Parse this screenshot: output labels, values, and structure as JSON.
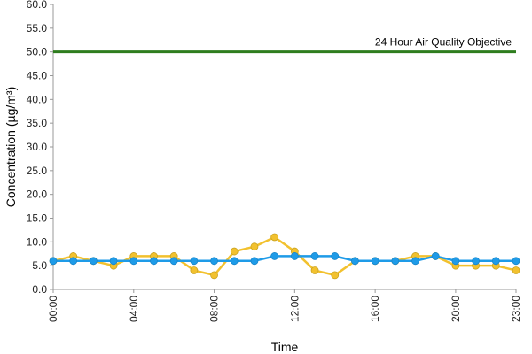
{
  "chart_data": {
    "type": "line",
    "title": "",
    "xlabel": "Time",
    "ylabel": "Concentration (µg/m³)",
    "ylim": [
      0,
      60
    ],
    "y_ticks": [
      "0.0",
      "5.0",
      "10.0",
      "15.0",
      "20.0",
      "25.0",
      "30.0",
      "35.0",
      "40.0",
      "45.0",
      "50.0",
      "55.0",
      "60.0"
    ],
    "x_tick_labels": [
      "00:00",
      "04:00",
      "08:00",
      "12:00",
      "16:00",
      "20:00",
      "23:00"
    ],
    "x_hours": [
      0,
      1,
      2,
      3,
      4,
      5,
      6,
      7,
      8,
      9,
      10,
      11,
      12,
      13,
      14,
      15,
      16,
      17,
      18,
      19,
      20,
      21,
      22,
      23
    ],
    "grid": false,
    "legend": "none",
    "series": [
      {
        "color": "#f2c12e",
        "values": [
          6,
          7,
          6,
          5,
          7,
          7,
          7,
          4,
          3,
          8,
          9,
          11,
          8,
          4,
          3,
          6,
          6,
          6,
          7,
          7,
          5,
          5,
          5,
          4
        ]
      },
      {
        "color": "#1e9be8",
        "values": [
          6,
          6,
          6,
          6,
          6,
          6,
          6,
          6,
          6,
          6,
          6,
          7,
          7,
          7,
          7,
          6,
          6,
          6,
          6,
          7,
          6,
          6,
          6,
          6
        ]
      }
    ],
    "reference_line": {
      "value": 50,
      "label": "24 Hour Air Quality Objective",
      "color": "#2e7d1e"
    }
  }
}
